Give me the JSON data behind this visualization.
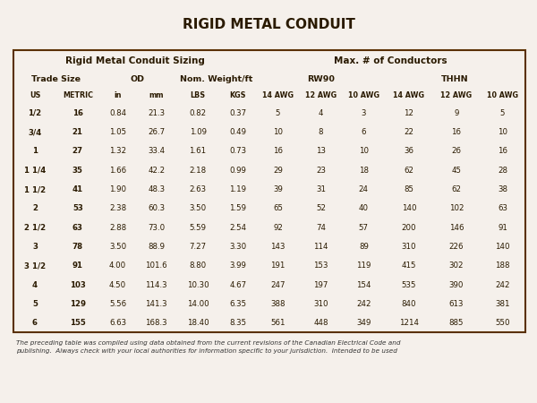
{
  "title": "RIGID METAL CONDUIT",
  "header_row1_left": "Rigid Metal Conduit Sizing",
  "header_row1_right": "Max. # of Conductors",
  "header_row3": [
    "US",
    "METRIC",
    "in",
    "mm",
    "LBS",
    "KGS",
    "14 AWG",
    "12 AWG",
    "10 AWG",
    "14 AWG",
    "12 AWG",
    "10 AWG"
  ],
  "rows": [
    [
      "1/2",
      "16",
      "0.84",
      "21.3",
      "0.82",
      "0.37",
      "5",
      "4",
      "3",
      "12",
      "9",
      "5"
    ],
    [
      "3/4",
      "21",
      "1.05",
      "26.7",
      "1.09",
      "0.49",
      "10",
      "8",
      "6",
      "22",
      "16",
      "10"
    ],
    [
      "1",
      "27",
      "1.32",
      "33.4",
      "1.61",
      "0.73",
      "16",
      "13",
      "10",
      "36",
      "26",
      "16"
    ],
    [
      "1 1/4",
      "35",
      "1.66",
      "42.2",
      "2.18",
      "0.99",
      "29",
      "23",
      "18",
      "62",
      "45",
      "28"
    ],
    [
      "1 1/2",
      "41",
      "1.90",
      "48.3",
      "2.63",
      "1.19",
      "39",
      "31",
      "24",
      "85",
      "62",
      "38"
    ],
    [
      "2",
      "53",
      "2.38",
      "60.3",
      "3.50",
      "1.59",
      "65",
      "52",
      "40",
      "140",
      "102",
      "63"
    ],
    [
      "2 1/2",
      "63",
      "2.88",
      "73.0",
      "5.59",
      "2.54",
      "92",
      "74",
      "57",
      "200",
      "146",
      "91"
    ],
    [
      "3",
      "78",
      "3.50",
      "88.9",
      "7.27",
      "3.30",
      "143",
      "114",
      "89",
      "310",
      "226",
      "140"
    ],
    [
      "3 1/2",
      "91",
      "4.00",
      "101.6",
      "8.80",
      "3.99",
      "191",
      "153",
      "119",
      "415",
      "302",
      "188"
    ],
    [
      "4",
      "103",
      "4.50",
      "114.3",
      "10.30",
      "4.67",
      "247",
      "197",
      "154",
      "535",
      "390",
      "242"
    ],
    [
      "5",
      "129",
      "5.56",
      "141.3",
      "14.00",
      "6.35",
      "388",
      "310",
      "242",
      "840",
      "613",
      "381"
    ],
    [
      "6",
      "155",
      "6.63",
      "168.3",
      "18.40",
      "8.35",
      "561",
      "448",
      "349",
      "1214",
      "885",
      "550"
    ]
  ],
  "footnote1": "The preceding table was compiled using data obtained from the current revisions of the Canadian Electrical Code and",
  "footnote2": "publishing.  Always check with your local authorities for information specific to your jurisdiction.  Intended to be used",
  "header_bg": "#C17F7F",
  "subheader_bg": "#D09090",
  "row_odd_bg": "#F2E4E4",
  "row_even_bg": "#FFFFFF",
  "border_color": "#5A3000",
  "text_color": "#2A1A00",
  "bg_color": "#F5F0EB"
}
